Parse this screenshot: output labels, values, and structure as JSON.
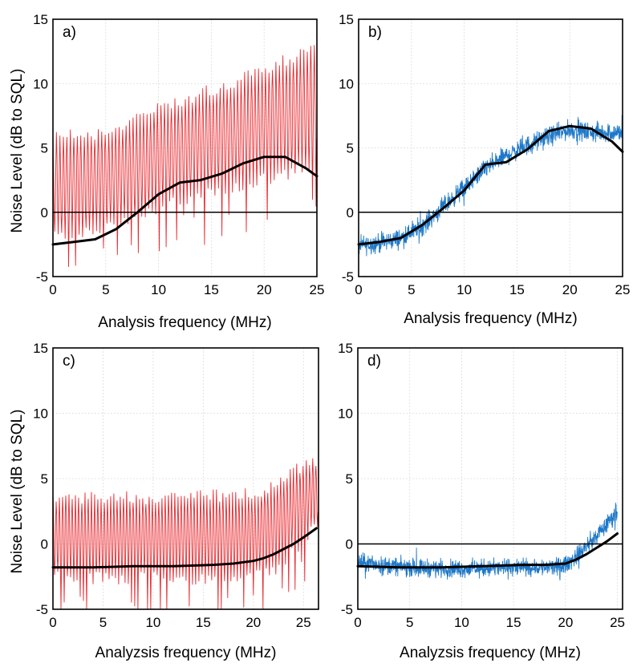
{
  "figure": {
    "ylabel_top": "Noise Level (dB to SQL)",
    "ylabel_bottom": "Noise Level (dB to SQL)"
  },
  "chart_data": [
    {
      "type": "line",
      "panel_label": "a)",
      "xlabel": "Analysis frequency (MHz)",
      "ylabel": "Noise Level (dB to SQL)",
      "xlim": [
        0,
        25
      ],
      "ylim": [
        -5,
        15
      ],
      "xticks": [
        0,
        5,
        10,
        15,
        20,
        25
      ],
      "yticks": [
        -5,
        0,
        5,
        10,
        15
      ],
      "grid": true,
      "reference_line_y": 0,
      "noise_color": "#e8262c",
      "series": [
        {
          "style": "thick-black",
          "x": [
            0,
            2,
            4,
            6,
            8,
            10,
            12,
            14,
            16,
            18,
            20,
            22,
            24,
            25
          ],
          "y": [
            -2.5,
            -2.3,
            -2.1,
            -1.3,
            0.0,
            1.4,
            2.3,
            2.5,
            3.0,
            3.8,
            4.3,
            4.3,
            3.4,
            2.8
          ]
        },
        {
          "style": "noise",
          "x_range": [
            0,
            25
          ],
          "baseline_x": [
            0,
            5,
            10,
            15,
            20,
            25
          ],
          "baseline_y": [
            -2.0,
            -1.2,
            0.4,
            1.6,
            2.6,
            3.6
          ],
          "upper_x": [
            0,
            5,
            10,
            15,
            20,
            25
          ],
          "upper_y": [
            5.8,
            6.2,
            8.0,
            9.5,
            11.0,
            13.0
          ],
          "oscillation_period_mhz": 0.33
        }
      ]
    },
    {
      "type": "line",
      "panel_label": "b)",
      "xlabel": "Analysis frequency (MHz)",
      "ylabel": "",
      "xlim": [
        0,
        25
      ],
      "ylim": [
        -5,
        15
      ],
      "xticks": [
        0,
        5,
        10,
        15,
        20,
        25
      ],
      "yticks": [
        -5,
        0,
        5,
        10,
        15
      ],
      "grid": true,
      "reference_line_y": 0,
      "noise_color": "#1f78c8",
      "series": [
        {
          "style": "thick-black",
          "x": [
            0,
            2,
            4,
            6,
            8,
            10,
            12,
            14,
            16,
            18,
            20,
            22,
            24,
            25
          ],
          "y": [
            -2.5,
            -2.3,
            -2.0,
            -1.0,
            0.3,
            1.7,
            3.7,
            3.9,
            4.9,
            6.3,
            6.7,
            6.5,
            5.5,
            4.7
          ]
        },
        {
          "style": "noise",
          "x_range": [
            0,
            25
          ],
          "mean_x": [
            0,
            2,
            4,
            6,
            8,
            10,
            12,
            14,
            16,
            18,
            20,
            22,
            25
          ],
          "mean_y": [
            -2.6,
            -2.4,
            -2.0,
            -1.1,
            0.4,
            1.9,
            3.4,
            4.4,
            5.2,
            5.9,
            6.4,
            6.2,
            6.2
          ],
          "spread": 0.55
        }
      ]
    },
    {
      "type": "line",
      "panel_label": "c)",
      "xlabel": "Analyzsis frequency (MHz)",
      "ylabel": "Noise Level (dB to SQL)",
      "xlim": [
        0,
        26.5
      ],
      "ylim": [
        -5,
        15
      ],
      "xticks": [
        0,
        5,
        10,
        15,
        20,
        25
      ],
      "yticks": [
        -5,
        0,
        5,
        10,
        15
      ],
      "grid": true,
      "reference_line_y": null,
      "noise_color": "#e8262c",
      "series": [
        {
          "style": "thick-black",
          "x": [
            0,
            4,
            8,
            12,
            16,
            18,
            20,
            21,
            22,
            23,
            24,
            25,
            26.3
          ],
          "y": [
            -1.8,
            -1.8,
            -1.7,
            -1.7,
            -1.6,
            -1.5,
            -1.3,
            -1.1,
            -0.8,
            -0.4,
            0.0,
            0.5,
            1.2
          ]
        },
        {
          "style": "noise",
          "x_range": [
            0,
            26.5
          ],
          "baseline_x": [
            0,
            20,
            22,
            24,
            26.5
          ],
          "baseline_y": [
            -2.6,
            -2.6,
            -2.0,
            -0.5,
            1.5
          ],
          "upper_x": [
            0,
            10,
            20,
            22,
            24,
            26.5
          ],
          "upper_y": [
            3.5,
            3.5,
            3.8,
            4.5,
            5.6,
            6.5
          ],
          "oscillation_period_mhz": 0.32
        }
      ]
    },
    {
      "type": "line",
      "panel_label": "d)",
      "xlabel": "Analyzsis frequency (MHz)",
      "ylabel": "",
      "xlim": [
        0,
        25.5
      ],
      "ylim": [
        -5,
        15
      ],
      "xticks": [
        0,
        5,
        10,
        15,
        20,
        25
      ],
      "yticks": [
        -5,
        0,
        5,
        10,
        15
      ],
      "grid": true,
      "reference_line_y": 0,
      "noise_color": "#1f78c8",
      "series": [
        {
          "style": "thick-black",
          "x": [
            0,
            4,
            8,
            12,
            16,
            18,
            20,
            21,
            22,
            23,
            24,
            25
          ],
          "y": [
            -1.7,
            -1.8,
            -1.8,
            -1.7,
            -1.6,
            -1.6,
            -1.5,
            -1.2,
            -0.8,
            -0.3,
            0.2,
            0.8
          ]
        },
        {
          "style": "noise",
          "x_range": [
            0,
            25
          ],
          "mean_x": [
            0,
            2,
            5,
            10,
            15,
            19,
            20,
            21,
            22,
            23,
            24,
            25
          ],
          "mean_y": [
            -1.4,
            -1.6,
            -1.8,
            -1.9,
            -1.8,
            -1.8,
            -1.6,
            -1.0,
            -0.2,
            0.6,
            1.5,
            2.6
          ],
          "spread": 0.5
        }
      ]
    }
  ]
}
